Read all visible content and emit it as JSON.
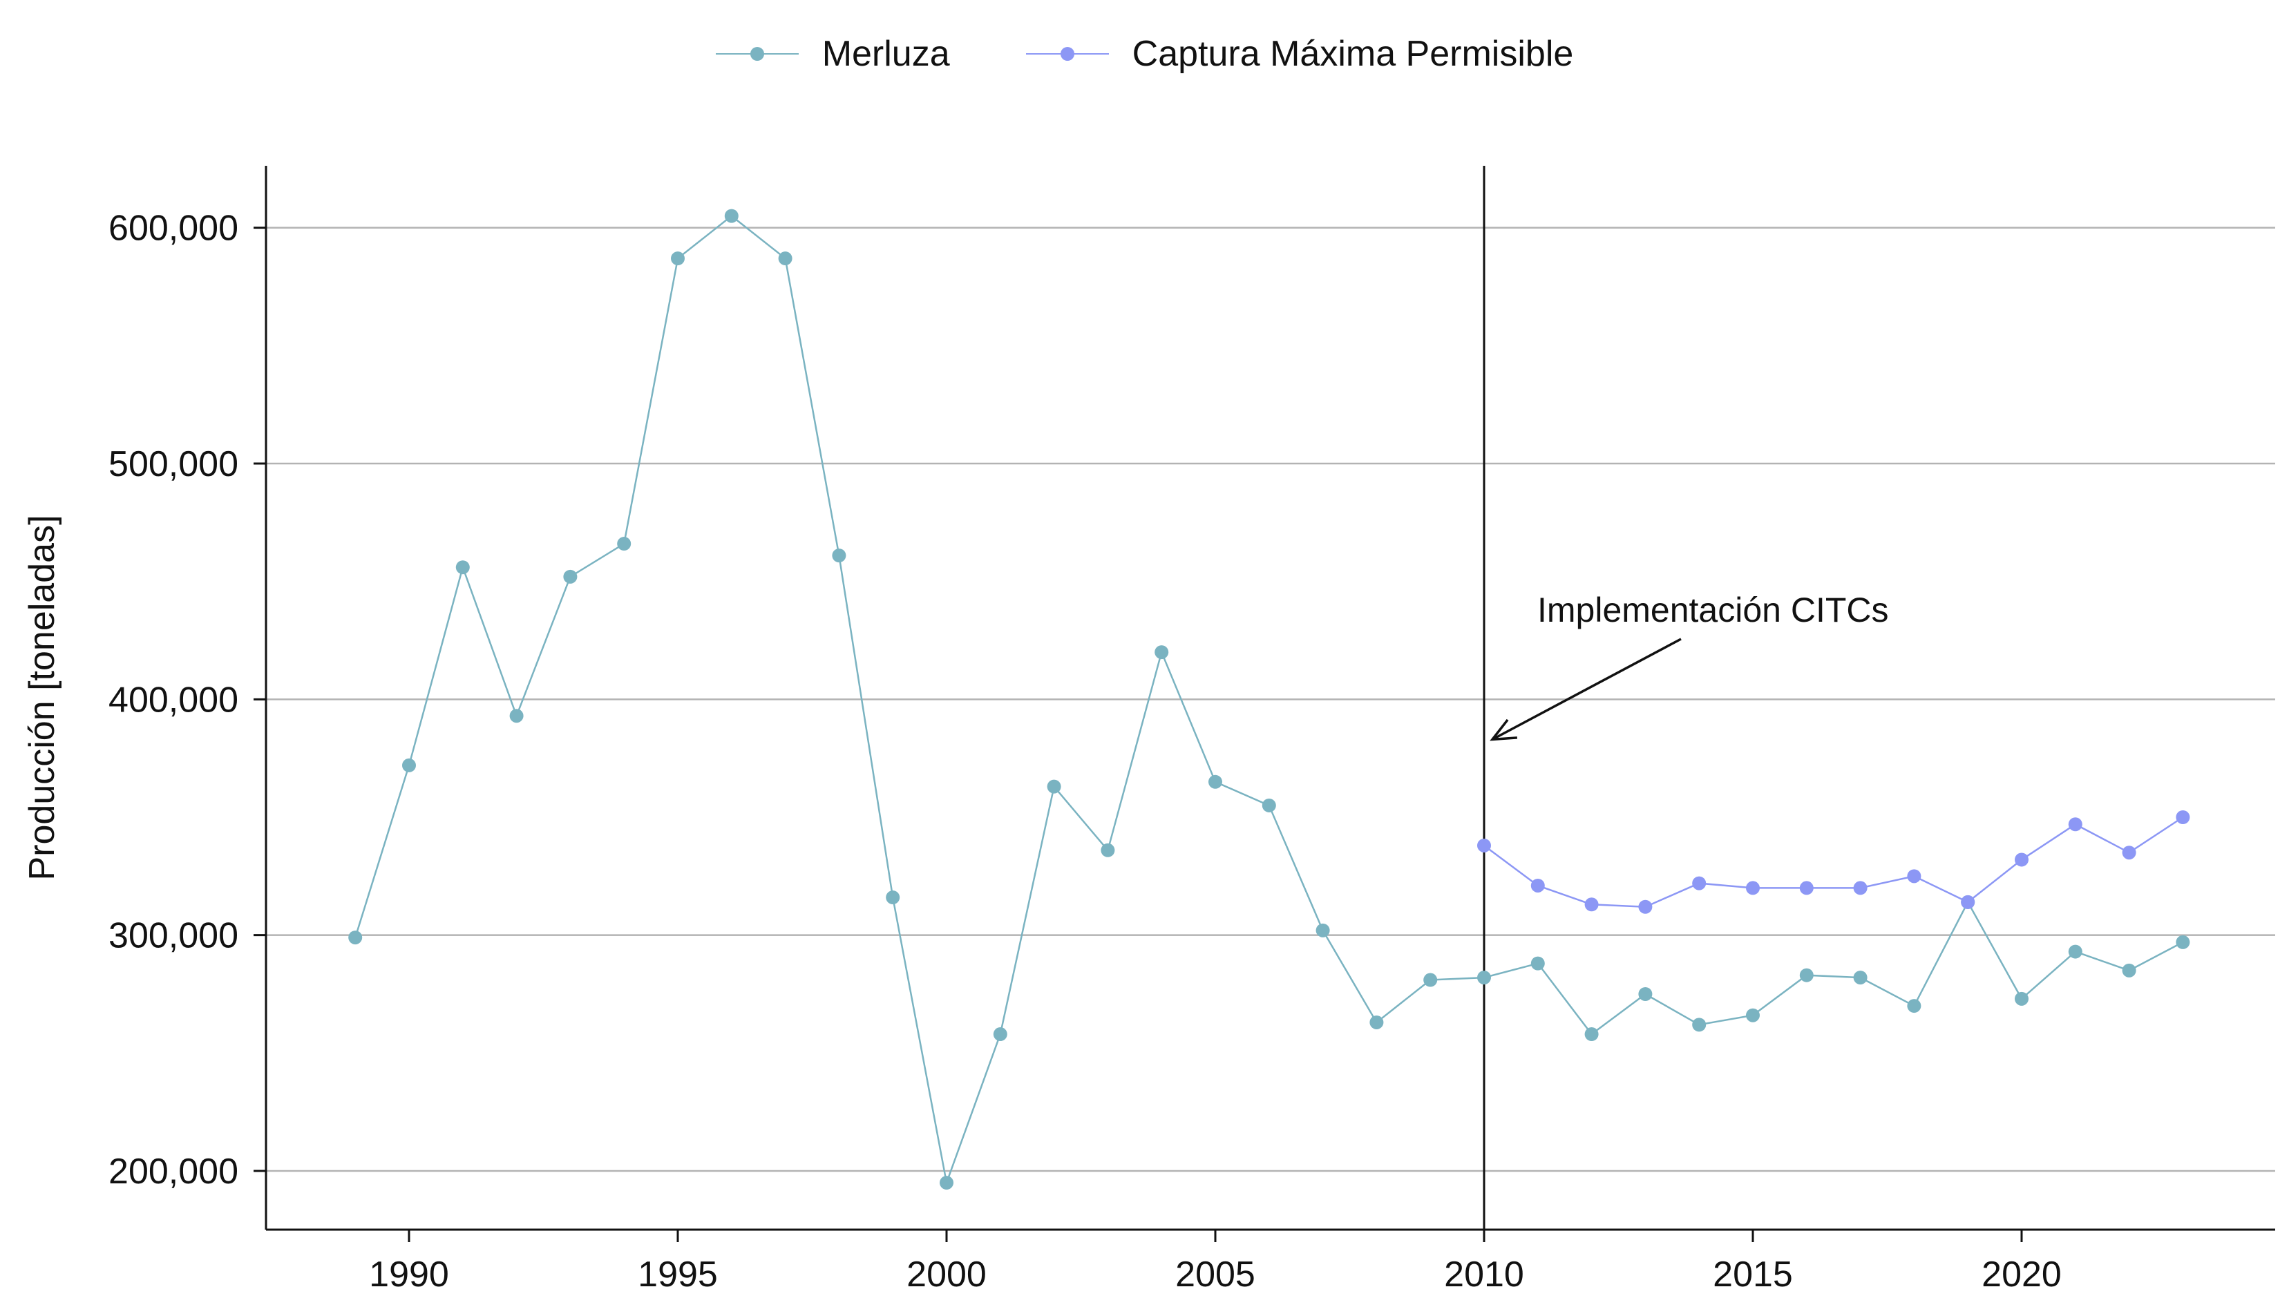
{
  "chart_data": {
    "type": "line",
    "title": "",
    "xlabel": "",
    "ylabel": "Producción [toneladas]",
    "xlim": [
      1987.5,
      2024.5
    ],
    "ylim": [
      175000,
      625000
    ],
    "x_ticks": [
      1990,
      1995,
      2000,
      2005,
      2010,
      2015,
      2020
    ],
    "y_ticks": [
      200000,
      300000,
      400000,
      500000,
      600000
    ],
    "y_tick_labels": [
      "200,000",
      "300,000",
      "400,000",
      "500,000",
      "600,000"
    ],
    "grid": "horizontal",
    "legend_position": "top-center",
    "series": [
      {
        "name": "Merluza",
        "color": "#7ab3c1",
        "x": [
          1989,
          1990,
          1991,
          1992,
          1993,
          1994,
          1995,
          1996,
          1997,
          1998,
          1999,
          2000,
          2001,
          2002,
          2003,
          2004,
          2005,
          2006,
          2007,
          2008,
          2009,
          2010,
          2011,
          2012,
          2013,
          2014,
          2015,
          2016,
          2017,
          2018,
          2019,
          2020,
          2021,
          2022,
          2023
        ],
        "y": [
          299000,
          372000,
          456000,
          393000,
          452000,
          466000,
          587000,
          605000,
          587000,
          461000,
          316000,
          195000,
          258000,
          363000,
          336000,
          420000,
          365000,
          355000,
          302000,
          263000,
          281000,
          282000,
          288000,
          258000,
          275000,
          262000,
          266000,
          283000,
          282000,
          270000,
          314000,
          273000,
          293000,
          285000,
          297000
        ]
      },
      {
        "name": "Captura Máxima Permisible",
        "color": "#8c97f5",
        "x": [
          2010,
          2011,
          2012,
          2013,
          2014,
          2015,
          2016,
          2017,
          2018,
          2019,
          2020,
          2021,
          2022,
          2023
        ],
        "y": [
          338000,
          321000,
          313000,
          312000,
          322000,
          320000,
          320000,
          320000,
          325000,
          314000,
          332000,
          347000,
          335000,
          350000
        ]
      }
    ],
    "vline": {
      "x": 2010
    },
    "annotation": {
      "text": "Implementación CITCs",
      "x": 2010,
      "y": 383000
    }
  }
}
